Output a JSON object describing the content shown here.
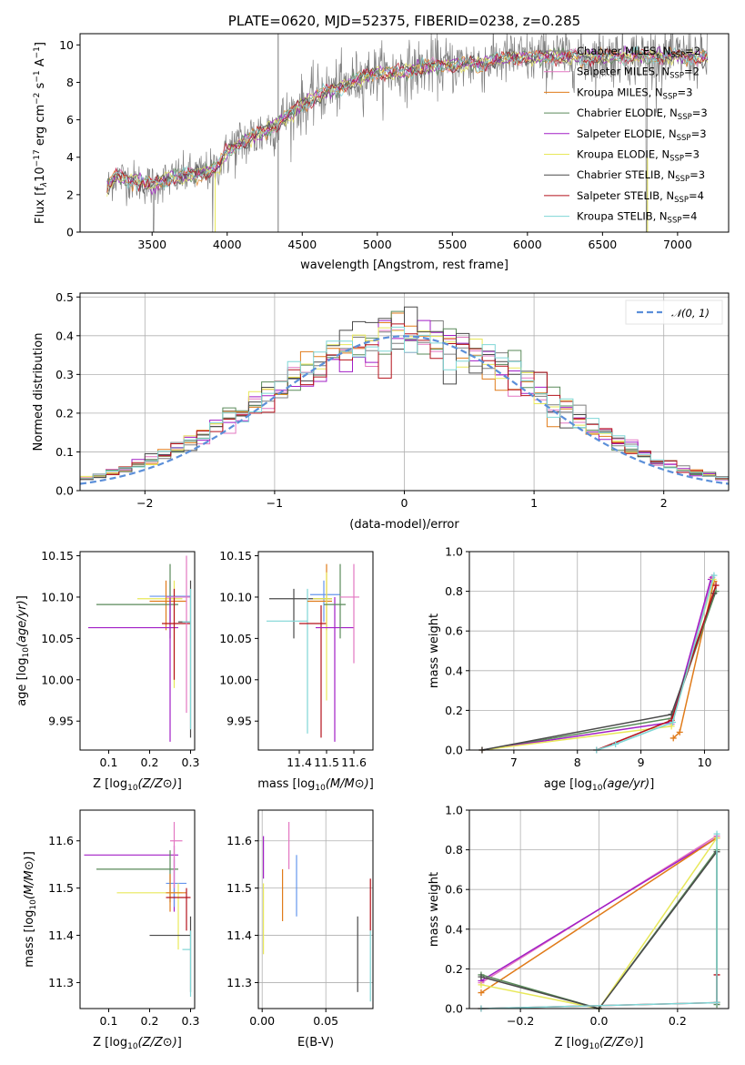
{
  "title": "PLATE=0620, MJD=52375, FIBERID=0238, z=0.285",
  "colors": {
    "chabrier_miles": "#7f7f7f",
    "salpeter_miles": "#e377c2",
    "kroupa_miles": "#e07b1a",
    "chabrier_elodie": "#5a8a5a",
    "salpeter_elodie": "#a21fc6",
    "kroupa_elodie": "#e8e85a",
    "chabrier_stelib": "#4a4a4a",
    "salpeter_stelib": "#b5121b",
    "kroupa_stelib": "#7fd6d6",
    "normal": "#5b8fd9",
    "extra_blue": "#6495ed"
  },
  "chart_data": [
    {
      "id": "spectrum",
      "type": "line",
      "title": "PLATE=0620, MJD=52375, FIBERID=0238, z=0.285",
      "xlabel": "wavelength [Angstrom, rest frame]",
      "ylabel_parts": [
        "Flux [f",
        "λ",
        "10",
        "−17",
        " erg cm",
        "−2",
        " s",
        "−1",
        " A",
        "−1",
        "]"
      ],
      "xlim": [
        3020,
        7340
      ],
      "ylim": [
        0,
        10.6
      ],
      "xticks": [
        3500,
        4000,
        4500,
        5000,
        5500,
        6000,
        6500,
        7000
      ],
      "yticks": [
        0,
        2,
        4,
        6,
        8,
        10
      ],
      "continuum": [
        [
          3200,
          2.3
        ],
        [
          3250,
          3.0
        ],
        [
          3300,
          2.9
        ],
        [
          3400,
          2.7
        ],
        [
          3500,
          2.5
        ],
        [
          3600,
          2.8
        ],
        [
          3700,
          3.0
        ],
        [
          3800,
          3.1
        ],
        [
          3900,
          3.3
        ],
        [
          3950,
          3.6
        ],
        [
          4000,
          4.3
        ],
        [
          4100,
          4.8
        ],
        [
          4200,
          5.2
        ],
        [
          4300,
          5.6
        ],
        [
          4400,
          6.2
        ],
        [
          4500,
          6.8
        ],
        [
          4600,
          7.3
        ],
        [
          4700,
          7.6
        ],
        [
          4800,
          7.9
        ],
        [
          4900,
          8.3
        ],
        [
          5000,
          8.5
        ],
        [
          5100,
          8.5
        ],
        [
          5200,
          8.6
        ],
        [
          5300,
          8.8
        ],
        [
          5400,
          8.9
        ],
        [
          5500,
          8.9
        ],
        [
          5600,
          9.0
        ],
        [
          5700,
          9.0
        ],
        [
          5800,
          9.2
        ],
        [
          5900,
          9.3
        ],
        [
          6000,
          9.3
        ],
        [
          6200,
          9.4
        ],
        [
          6400,
          9.3
        ],
        [
          6600,
          9.4
        ],
        [
          6800,
          9.4
        ],
        [
          7000,
          9.4
        ],
        [
          7200,
          9.3
        ]
      ],
      "legend": [
        {
          "label": "Chabrier MILES, N",
          "sub": "SSP",
          "suffix": "=2",
          "color": "#7f7f7f"
        },
        {
          "label": "Salpeter MILES, N",
          "sub": "SSP",
          "suffix": "=2",
          "color": "#e377c2"
        },
        {
          "label": "Kroupa MILES, N",
          "sub": "SSP",
          "suffix": "=3",
          "color": "#e07b1a"
        },
        {
          "label": "Chabrier ELODIE, N",
          "sub": "SSP",
          "suffix": "=3",
          "color": "#5a8a5a"
        },
        {
          "label": "Salpeter ELODIE, N",
          "sub": "SSP",
          "suffix": "=3",
          "color": "#a21fc6"
        },
        {
          "label": "Kroupa ELODIE, N",
          "sub": "SSP",
          "suffix": "=3",
          "color": "#e8e85a"
        },
        {
          "label": "Chabrier STELIB, N",
          "sub": "SSP",
          "suffix": "=3",
          "color": "#4a4a4a"
        },
        {
          "label": "Salpeter STELIB, N",
          "sub": "SSP",
          "suffix": "=4",
          "color": "#b5121b"
        },
        {
          "label": "Kroupa STELIB, N",
          "sub": "SSP",
          "suffix": "=4",
          "color": "#7fd6d6"
        }
      ]
    },
    {
      "id": "residuals",
      "type": "histogram",
      "xlabel": "(data-model)/error",
      "ylabel": "Normed distribution",
      "xlim": [
        -2.5,
        2.5
      ],
      "ylim": [
        0,
        0.51
      ],
      "xticks": [
        -2,
        -1,
        0,
        1,
        2
      ],
      "yticks": [
        0.0,
        0.1,
        0.2,
        0.3,
        0.4,
        0.5
      ],
      "bin_width": 0.1,
      "legend": "𝒩(0, 1)",
      "series_colors": [
        "#7f7f7f",
        "#e377c2",
        "#e07b1a",
        "#5a8a5a",
        "#a21fc6",
        "#e8e85a",
        "#4a4a4a",
        "#b5121b",
        "#7fd6d6"
      ]
    },
    {
      "id": "age_vs_Z",
      "type": "errorbar",
      "xlabel": "Z [log10(Z/Z⊙)]",
      "ylabel": "age  [log10(age/yr)]",
      "xlim": [
        0.03,
        0.31
      ],
      "ylim": [
        9.915,
        10.155
      ],
      "xticks": [
        0.1,
        0.2,
        0.3
      ],
      "yticks": [
        9.95,
        10.0,
        10.05,
        10.1,
        10.15
      ],
      "points": [
        {
          "x": 0.26,
          "y": 10.098,
          "xlo": 0.17,
          "xhi": 0.28,
          "ylo": 9.99,
          "yhi": 10.12,
          "color": "#e8e85a"
        },
        {
          "x": 0.25,
          "y": 10.101,
          "xlo": 0.2,
          "xhi": 0.3,
          "ylo": 10.07,
          "yhi": 10.12,
          "color": "#6495ed"
        },
        {
          "x": 0.24,
          "y": 10.095,
          "xlo": 0.2,
          "xhi": 0.29,
          "ylo": 10.06,
          "yhi": 10.12,
          "color": "#e07b1a"
        },
        {
          "x": 0.25,
          "y": 10.091,
          "xlo": 0.07,
          "xhi": 0.27,
          "ylo": 10.05,
          "yhi": 10.14,
          "color": "#5a8a5a"
        },
        {
          "x": 0.25,
          "y": 10.063,
          "xlo": 0.05,
          "xhi": 0.27,
          "ylo": 9.925,
          "yhi": 10.1,
          "color": "#a21fc6"
        },
        {
          "x": 0.26,
          "y": 10.068,
          "xlo": 0.23,
          "xhi": 0.3,
          "ylo": 10.0,
          "yhi": 10.11,
          "color": "#b5121b"
        },
        {
          "x": 0.29,
          "y": 10.1,
          "xlo": 0.24,
          "xhi": 0.3,
          "ylo": 9.96,
          "yhi": 10.15,
          "color": "#e377c2"
        },
        {
          "x": 0.3,
          "y": 10.07,
          "xlo": 0.27,
          "xhi": 0.3,
          "ylo": 9.93,
          "yhi": 10.12,
          "color": "#4a4a4a"
        },
        {
          "x": 0.3,
          "y": 10.07,
          "xlo": 0.28,
          "xhi": 0.3,
          "ylo": 9.94,
          "yhi": 10.11,
          "color": "#7fd6d6"
        }
      ]
    },
    {
      "id": "age_vs_mass",
      "type": "errorbar",
      "xlabel": "mass [log10(M/M⊙)]",
      "ylabel": "",
      "xlim": [
        11.25,
        11.67
      ],
      "ylim": [
        9.915,
        10.155
      ],
      "xticks": [
        11.4,
        11.5,
        11.6
      ],
      "yticks": [
        9.95,
        10.0,
        10.05,
        10.1,
        10.15
      ],
      "points": [
        {
          "x": 11.38,
          "y": 10.098,
          "xlo": 11.29,
          "xhi": 11.52,
          "ylo": 10.05,
          "yhi": 10.11,
          "color": "#4a4a4a"
        },
        {
          "x": 11.43,
          "y": 10.071,
          "xlo": 11.28,
          "xhi": 11.43,
          "ylo": 9.935,
          "yhi": 10.11,
          "color": "#7fd6d6"
        },
        {
          "x": 11.48,
          "y": 10.068,
          "xlo": 11.4,
          "xhi": 11.5,
          "ylo": 9.93,
          "yhi": 10.09,
          "color": "#b5121b"
        },
        {
          "x": 11.49,
          "y": 10.103,
          "xlo": 11.44,
          "xhi": 11.55,
          "ylo": 10.07,
          "yhi": 10.12,
          "color": "#6495ed"
        },
        {
          "x": 11.5,
          "y": 10.095,
          "xlo": 11.43,
          "xhi": 11.52,
          "ylo": 10.06,
          "yhi": 10.14,
          "color": "#e07b1a"
        },
        {
          "x": 11.5,
          "y": 10.098,
          "xlo": 11.45,
          "xhi": 11.52,
          "ylo": 9.975,
          "yhi": 10.13,
          "color": "#e8e85a"
        },
        {
          "x": 11.53,
          "y": 10.063,
          "xlo": 11.46,
          "xhi": 11.6,
          "ylo": 9.925,
          "yhi": 10.1,
          "color": "#a21fc6"
        },
        {
          "x": 11.55,
          "y": 10.091,
          "xlo": 11.49,
          "xhi": 11.57,
          "ylo": 10.05,
          "yhi": 10.14,
          "color": "#5a8a5a"
        },
        {
          "x": 11.6,
          "y": 10.1,
          "xlo": 11.55,
          "xhi": 11.62,
          "ylo": 10.02,
          "yhi": 10.14,
          "color": "#e377c2"
        }
      ]
    },
    {
      "id": "weight_vs_age",
      "type": "line",
      "xlabel": "age  [log10(age/yr)]",
      "ylabel": "mass weight",
      "xlim": [
        6.3,
        10.38
      ],
      "ylim": [
        0,
        1.0
      ],
      "xticks": [
        7,
        8,
        9,
        10
      ],
      "yticks": [
        0.0,
        0.2,
        0.4,
        0.6,
        0.8,
        1.0
      ],
      "series": [
        {
          "color": "#e07b1a",
          "points": [
            [
              9.51,
              0.06
            ],
            [
              9.61,
              0.09
            ],
            [
              10.15,
              0.85
            ]
          ]
        },
        {
          "color": "#e377c2",
          "points": [
            [
              9.48,
              0.13
            ],
            [
              10.12,
              0.87
            ]
          ]
        },
        {
          "color": "#5a8a5a",
          "points": [
            [
              6.5,
              0.0
            ],
            [
              9.48,
              0.16
            ],
            [
              10.18,
              0.8
            ]
          ]
        },
        {
          "color": "#a21fc6",
          "points": [
            [
              6.5,
              0.0
            ],
            [
              9.48,
              0.14
            ],
            [
              10.1,
              0.86
            ]
          ]
        },
        {
          "color": "#e8e85a",
          "points": [
            [
              6.5,
              0.0
            ],
            [
              9.48,
              0.12
            ],
            [
              10.14,
              0.86
            ]
          ]
        },
        {
          "color": "#4a4a4a",
          "points": [
            [
              6.5,
              0.0
            ],
            [
              9.48,
              0.18
            ],
            [
              10.15,
              0.79
            ]
          ]
        },
        {
          "color": "#b5121b",
          "points": [
            [
              8.3,
              0.0
            ],
            [
              9.48,
              0.15
            ],
            [
              10.18,
              0.83
            ]
          ]
        },
        {
          "color": "#7fd6d6",
          "points": [
            [
              8.3,
              0.0
            ],
            [
              8.6,
              0.03
            ],
            [
              9.5,
              0.14
            ],
            [
              10.15,
              0.88
            ]
          ]
        }
      ]
    },
    {
      "id": "mass_vs_Z",
      "type": "errorbar",
      "xlabel": "Z [log10(Z/Z⊙)]",
      "ylabel": "mass [log10(M/M⊙)]",
      "xlim": [
        0.03,
        0.31
      ],
      "ylim": [
        11.245,
        11.665
      ],
      "xticks": [
        0.1,
        0.2,
        0.3
      ],
      "yticks": [
        11.3,
        11.4,
        11.5,
        11.6
      ],
      "points": [
        {
          "x": 0.26,
          "y": 11.57,
          "xlo": 0.04,
          "xhi": 0.27,
          "ylo": 11.45,
          "yhi": 11.59,
          "color": "#a21fc6"
        },
        {
          "x": 0.25,
          "y": 11.54,
          "xlo": 0.07,
          "xhi": 0.27,
          "ylo": 11.47,
          "yhi": 11.58,
          "color": "#5a8a5a"
        },
        {
          "x": 0.26,
          "y": 11.51,
          "xlo": 0.24,
          "xhi": 0.29,
          "ylo": 11.46,
          "yhi": 11.56,
          "color": "#6495ed"
        },
        {
          "x": 0.27,
          "y": 11.49,
          "xlo": 0.12,
          "xhi": 0.28,
          "ylo": 11.37,
          "yhi": 11.51,
          "color": "#e8e85a"
        },
        {
          "x": 0.25,
          "y": 11.49,
          "xlo": 0.24,
          "xhi": 0.29,
          "ylo": 11.45,
          "yhi": 11.53,
          "color": "#e07b1a"
        },
        {
          "x": 0.29,
          "y": 11.48,
          "xlo": 0.24,
          "xhi": 0.3,
          "ylo": 11.41,
          "yhi": 11.5,
          "color": "#b5121b"
        },
        {
          "x": 0.26,
          "y": 11.6,
          "xlo": 0.25,
          "xhi": 0.28,
          "ylo": 11.5,
          "yhi": 11.64,
          "color": "#e377c2"
        },
        {
          "x": 0.3,
          "y": 11.4,
          "xlo": 0.2,
          "xhi": 0.3,
          "ylo": 11.28,
          "yhi": 11.44,
          "color": "#4a4a4a"
        },
        {
          "x": 0.3,
          "y": 11.37,
          "xlo": 0.28,
          "xhi": 0.3,
          "ylo": 11.27,
          "yhi": 11.41,
          "color": "#7fd6d6"
        }
      ]
    },
    {
      "id": "mass_vs_EBV",
      "type": "errorbar",
      "xlabel": "E(B-V)",
      "ylabel": "",
      "xlim": [
        -0.003,
        0.087
      ],
      "ylim": [
        11.245,
        11.665
      ],
      "xticks": [
        0.0,
        0.05
      ],
      "yticks": [
        11.3,
        11.4,
        11.5,
        11.6
      ],
      "points": [
        {
          "x": 0.001,
          "y": 11.57,
          "ylo": 11.52,
          "yhi": 11.61,
          "color": "#a21fc6"
        },
        {
          "x": 0.001,
          "y": 11.48,
          "ylo": 11.36,
          "yhi": 11.51,
          "color": "#e8e85a"
        },
        {
          "x": 0.016,
          "y": 11.49,
          "ylo": 11.43,
          "yhi": 11.54,
          "color": "#e07b1a"
        },
        {
          "x": 0.021,
          "y": 11.6,
          "ylo": 11.54,
          "yhi": 11.64,
          "color": "#e377c2"
        },
        {
          "x": 0.027,
          "y": 11.52,
          "ylo": 11.44,
          "yhi": 11.57,
          "color": "#6495ed"
        },
        {
          "x": 0.075,
          "y": 11.36,
          "ylo": 11.28,
          "yhi": 11.44,
          "color": "#4a4a4a"
        },
        {
          "x": 0.085,
          "y": 11.47,
          "ylo": 11.41,
          "yhi": 11.52,
          "color": "#b5121b"
        },
        {
          "x": 0.085,
          "y": 11.36,
          "ylo": 11.26,
          "yhi": 11.41,
          "color": "#7fd6d6"
        }
      ]
    },
    {
      "id": "weight_vs_Z",
      "type": "line",
      "xlabel": "Z [log10(Z/Z⊙)]",
      "ylabel": "mass weight",
      "xlim": [
        -0.33,
        0.33
      ],
      "ylim": [
        0,
        1.0
      ],
      "xticks": [
        -0.2,
        0.0,
        0.2
      ],
      "yticks": [
        0.0,
        0.2,
        0.4,
        0.6,
        0.8,
        1.0
      ],
      "series": [
        {
          "color": "#e377c2",
          "points": [
            [
              -0.3,
              0.13
            ],
            [
              0.3,
              0.87
            ]
          ]
        },
        {
          "color": "#a21fc6",
          "points": [
            [
              -0.3,
              0.14
            ],
            [
              0.3,
              0.86
            ]
          ]
        },
        {
          "color": "#e07b1a",
          "points": [
            [
              -0.3,
              0.08
            ],
            [
              0.3,
              0.86
            ]
          ]
        },
        {
          "color": "#5a8a5a",
          "points": [
            [
              -0.3,
              0.17
            ],
            [
              0.0,
              0.0
            ],
            [
              0.3,
              0.8
            ],
            [
              0.3,
              0.02
            ]
          ]
        },
        {
          "color": "#e8e85a",
          "points": [
            [
              -0.3,
              0.12
            ],
            [
              0.0,
              0.0
            ],
            [
              0.3,
              0.86
            ],
            [
              0.3,
              0.03
            ]
          ]
        },
        {
          "color": "#4a4a4a",
          "points": [
            [
              -0.3,
              0.16
            ],
            [
              0.0,
              0.0
            ],
            [
              0.3,
              0.79
            ],
            [
              0.3,
              0.03
            ]
          ]
        },
        {
          "color": "#b5121b",
          "points": [
            [
              -0.3,
              0.0
            ],
            [
              0.3,
              0.03
            ],
            [
              0.3,
              0.17
            ]
          ]
        },
        {
          "color": "#7fd6d6",
          "points": [
            [
              -0.3,
              0.0
            ],
            [
              0.3,
              0.03
            ],
            [
              0.3,
              0.88
            ]
          ]
        }
      ]
    }
  ]
}
